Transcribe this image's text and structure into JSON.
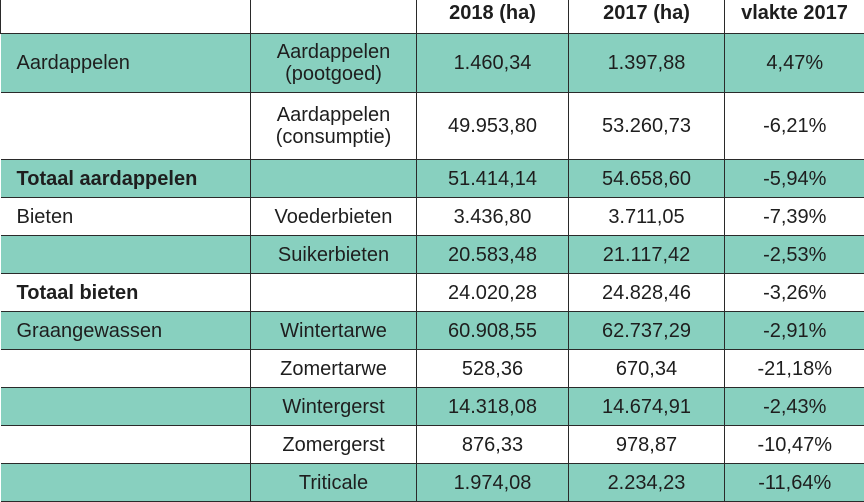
{
  "header": {
    "col1": "",
    "col2": "",
    "col3": "2018 (ha)",
    "col4": "2017 (ha)",
    "col5": "vlakte 2017"
  },
  "rows": [
    {
      "crop": "Aardappelen",
      "sub": "Aardappelen\n(pootgoed)",
      "y2018": "1.460,34",
      "y2017": "1.397,88",
      "change": "4,47%",
      "style": "green",
      "bold": false
    },
    {
      "crop": "",
      "sub": "Aardappelen\n(consumptie)",
      "y2018": "49.953,80",
      "y2017": "53.260,73",
      "change": "-6,21%",
      "style": "white",
      "bold": false
    },
    {
      "crop": "Totaal aardappelen",
      "sub": "",
      "y2018": "51.414,14",
      "y2017": "54.658,60",
      "change": "-5,94%",
      "style": "green",
      "bold": true
    },
    {
      "crop": "Bieten",
      "sub": "Voederbieten",
      "y2018": "3.436,80",
      "y2017": "3.711,05",
      "change": "-7,39%",
      "style": "white",
      "bold": false
    },
    {
      "crop": "",
      "sub": "Suikerbieten",
      "y2018": "20.583,48",
      "y2017": "21.117,42",
      "change": "-2,53%",
      "style": "green",
      "bold": false
    },
    {
      "crop": "Totaal bieten",
      "sub": "",
      "y2018": "24.020,28",
      "y2017": "24.828,46",
      "change": "-3,26%",
      "style": "white",
      "bold": true
    },
    {
      "crop": "Graangewassen",
      "sub": "Wintertarwe",
      "y2018": "60.908,55",
      "y2017": "62.737,29",
      "change": "-2,91%",
      "style": "green",
      "bold": false
    },
    {
      "crop": "",
      "sub": "Zomertarwe",
      "y2018": "528,36",
      "y2017": "670,34",
      "change": "-21,18%",
      "style": "white",
      "bold": false
    },
    {
      "crop": "",
      "sub": "Wintergerst",
      "y2018": "14.318,08",
      "y2017": "14.674,91",
      "change": "-2,43%",
      "style": "green",
      "bold": false
    },
    {
      "crop": "",
      "sub": "Zomergerst",
      "y2018": "876,33",
      "y2017": "978,87",
      "change": "-10,47%",
      "style": "white",
      "bold": false
    },
    {
      "crop": "",
      "sub": "Triticale",
      "y2018": "1.974,08",
      "y2017": "2.234,23",
      "change": "-11,64%",
      "style": "green",
      "bold": false
    }
  ]
}
